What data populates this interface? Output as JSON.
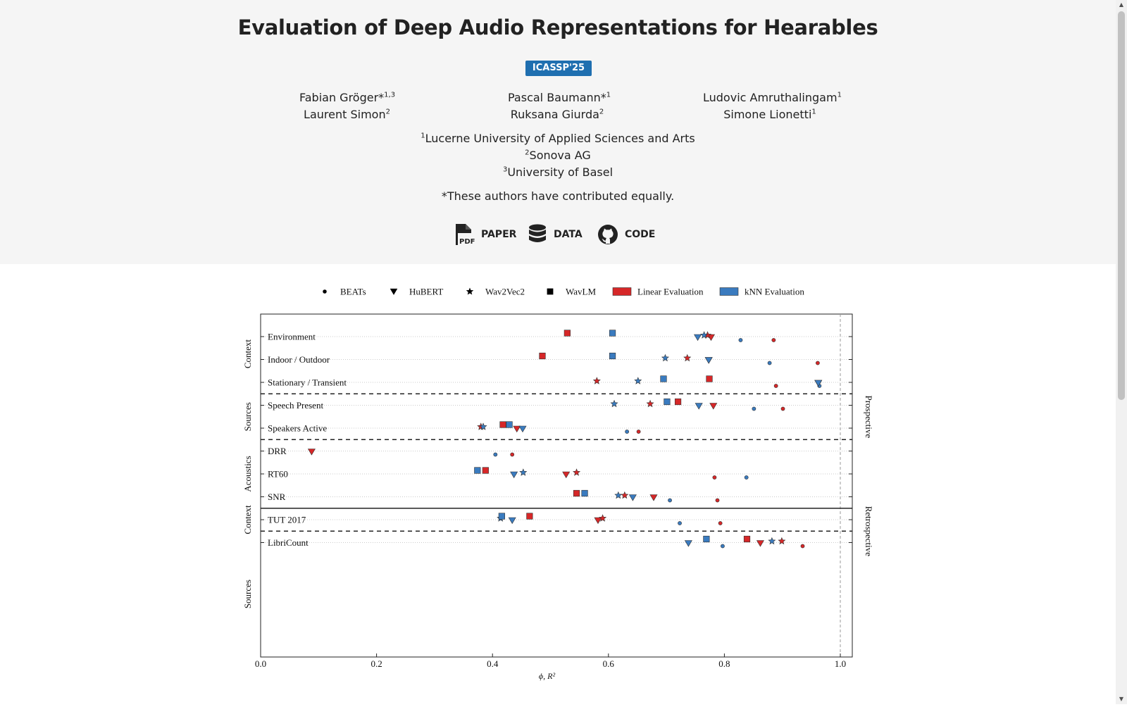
{
  "hero": {
    "title": "Evaluation of Deep Audio Representations for Hearables",
    "venue": "ICASSP'25",
    "authors": [
      {
        "name": "Fabian Gröger*",
        "sup": "1,3"
      },
      {
        "name": "Pascal Baumann*",
        "sup": "1"
      },
      {
        "name": "Ludovic Amruthalingam",
        "sup": "1"
      },
      {
        "name": "Laurent Simon",
        "sup": "2"
      },
      {
        "name": "Ruksana Giurda",
        "sup": "2"
      },
      {
        "name": "Simone Lionetti",
        "sup": "1"
      }
    ],
    "affiliations": [
      {
        "sup": "1",
        "name": "Lucerne University of Applied Sciences and Arts"
      },
      {
        "sup": "2",
        "name": "Sonova AG"
      },
      {
        "sup": "3",
        "name": "University of Basel"
      }
    ],
    "note": "*These authors have contributed equally.",
    "links": [
      {
        "label": "PAPER",
        "icon": "pdf-file-icon"
      },
      {
        "label": "DATA",
        "icon": "database-icon"
      },
      {
        "label": "CODE",
        "icon": "github-icon"
      }
    ]
  },
  "colors": {
    "linear": "#d62728",
    "knn": "#3a7bbf",
    "venue_badge": "#1f6fb0",
    "hero_bg": "#f5f5f5"
  },
  "chart_data": {
    "type": "scatter",
    "xlabel": "ϕ, R²",
    "xlim": [
      0.0,
      1.0
    ],
    "xticks": [
      "0.0",
      "0.2",
      "0.4",
      "0.6",
      "0.8",
      "1.0"
    ],
    "legend": {
      "placement": "top",
      "models": [
        {
          "name": "BEATs",
          "marker": "circle"
        },
        {
          "name": "HuBERT",
          "marker": "triangle-down"
        },
        {
          "name": "Wav2Vec2",
          "marker": "star"
        },
        {
          "name": "WavLM",
          "marker": "square"
        }
      ],
      "evaluations": [
        {
          "name": "Linear Evaluation",
          "key": "linear"
        },
        {
          "name": "kNN Evaluation",
          "key": "knn"
        }
      ]
    },
    "groups": [
      {
        "label": "Context",
        "rows": [
          "Environment",
          "Indoor / Outdoor",
          "Stationary / Transient"
        ]
      },
      {
        "label": "Sources",
        "rows": [
          "Speech Present",
          "Speakers Active"
        ]
      },
      {
        "label": "Acoustics",
        "rows": [
          "DRR",
          "RT60",
          "SNR"
        ]
      },
      {
        "label": "Context",
        "rows": [
          "TUT 2017"
        ]
      },
      {
        "label": "Sources",
        "rows": [
          "LibriCount"
        ]
      }
    ],
    "sections": [
      {
        "label": "Prospective",
        "rows": [
          "Environment",
          "Indoor / Outdoor",
          "Stationary / Transient",
          "Speech Present",
          "Speakers Active",
          "DRR",
          "RT60",
          "SNR"
        ]
      },
      {
        "label": "Retrospective",
        "rows": [
          "TUT 2017",
          "LibriCount"
        ]
      }
    ],
    "points": [
      {
        "row": "Environment",
        "model": "BEATs",
        "eval": "linear",
        "x": 0.885
      },
      {
        "row": "Environment",
        "model": "BEATs",
        "eval": "knn",
        "x": 0.828
      },
      {
        "row": "Environment",
        "model": "HuBERT",
        "eval": "linear",
        "x": 0.777
      },
      {
        "row": "Environment",
        "model": "HuBERT",
        "eval": "knn",
        "x": 0.754
      },
      {
        "row": "Environment",
        "model": "Wav2Vec2",
        "eval": "linear",
        "x": 0.771
      },
      {
        "row": "Environment",
        "model": "Wav2Vec2",
        "eval": "knn",
        "x": 0.765
      },
      {
        "row": "Environment",
        "model": "WavLM",
        "eval": "linear",
        "x": 0.529
      },
      {
        "row": "Environment",
        "model": "WavLM",
        "eval": "knn",
        "x": 0.607
      },
      {
        "row": "Indoor / Outdoor",
        "model": "BEATs",
        "eval": "linear",
        "x": 0.961
      },
      {
        "row": "Indoor / Outdoor",
        "model": "BEATs",
        "eval": "knn",
        "x": 0.878
      },
      {
        "row": "Indoor / Outdoor",
        "model": "HuBERT",
        "eval": "linear",
        "x": 0.773
      },
      {
        "row": "Indoor / Outdoor",
        "model": "HuBERT",
        "eval": "knn",
        "x": 0.773
      },
      {
        "row": "Indoor / Outdoor",
        "model": "Wav2Vec2",
        "eval": "linear",
        "x": 0.736
      },
      {
        "row": "Indoor / Outdoor",
        "model": "Wav2Vec2",
        "eval": "knn",
        "x": 0.698
      },
      {
        "row": "Indoor / Outdoor",
        "model": "WavLM",
        "eval": "linear",
        "x": 0.486
      },
      {
        "row": "Indoor / Outdoor",
        "model": "WavLM",
        "eval": "knn",
        "x": 0.607
      },
      {
        "row": "Stationary / Transient",
        "model": "BEATs",
        "eval": "linear",
        "x": 0.889
      },
      {
        "row": "Stationary / Transient",
        "model": "BEATs",
        "eval": "knn",
        "x": 0.964
      },
      {
        "row": "Stationary / Transient",
        "model": "HuBERT",
        "eval": "linear",
        "x": 0.962
      },
      {
        "row": "Stationary / Transient",
        "model": "HuBERT",
        "eval": "knn",
        "x": 0.962
      },
      {
        "row": "Stationary / Transient",
        "model": "Wav2Vec2",
        "eval": "linear",
        "x": 0.58
      },
      {
        "row": "Stationary / Transient",
        "model": "Wav2Vec2",
        "eval": "knn",
        "x": 0.651
      },
      {
        "row": "Stationary / Transient",
        "model": "WavLM",
        "eval": "linear",
        "x": 0.774
      },
      {
        "row": "Stationary / Transient",
        "model": "WavLM",
        "eval": "knn",
        "x": 0.695
      },
      {
        "row": "Speech Present",
        "model": "BEATs",
        "eval": "linear",
        "x": 0.901
      },
      {
        "row": "Speech Present",
        "model": "BEATs",
        "eval": "knn",
        "x": 0.851
      },
      {
        "row": "Speech Present",
        "model": "HuBERT",
        "eval": "linear",
        "x": 0.781
      },
      {
        "row": "Speech Present",
        "model": "HuBERT",
        "eval": "knn",
        "x": 0.756
      },
      {
        "row": "Speech Present",
        "model": "Wav2Vec2",
        "eval": "linear",
        "x": 0.672
      },
      {
        "row": "Speech Present",
        "model": "Wav2Vec2",
        "eval": "knn",
        "x": 0.61
      },
      {
        "row": "Speech Present",
        "model": "WavLM",
        "eval": "linear",
        "x": 0.72
      },
      {
        "row": "Speech Present",
        "model": "WavLM",
        "eval": "knn",
        "x": 0.701
      },
      {
        "row": "Speakers Active",
        "model": "BEATs",
        "eval": "linear",
        "x": 0.652
      },
      {
        "row": "Speakers Active",
        "model": "BEATs",
        "eval": "knn",
        "x": 0.632
      },
      {
        "row": "Speakers Active",
        "model": "HuBERT",
        "eval": "linear",
        "x": 0.442
      },
      {
        "row": "Speakers Active",
        "model": "HuBERT",
        "eval": "knn",
        "x": 0.452
      },
      {
        "row": "Speakers Active",
        "model": "Wav2Vec2",
        "eval": "linear",
        "x": 0.38
      },
      {
        "row": "Speakers Active",
        "model": "Wav2Vec2",
        "eval": "knn",
        "x": 0.384
      },
      {
        "row": "Speakers Active",
        "model": "WavLM",
        "eval": "linear",
        "x": 0.418
      },
      {
        "row": "Speakers Active",
        "model": "WavLM",
        "eval": "knn",
        "x": 0.429
      },
      {
        "row": "DRR",
        "model": "BEATs",
        "eval": "linear",
        "x": 0.434
      },
      {
        "row": "DRR",
        "model": "BEATs",
        "eval": "knn",
        "x": 0.405
      },
      {
        "row": "DRR",
        "model": "HuBERT",
        "eval": "linear",
        "x": 0.088
      },
      {
        "row": "RT60",
        "model": "BEATs",
        "eval": "linear",
        "x": 0.783
      },
      {
        "row": "RT60",
        "model": "BEATs",
        "eval": "knn",
        "x": 0.838
      },
      {
        "row": "RT60",
        "model": "HuBERT",
        "eval": "linear",
        "x": 0.527
      },
      {
        "row": "RT60",
        "model": "HuBERT",
        "eval": "knn",
        "x": 0.437
      },
      {
        "row": "RT60",
        "model": "Wav2Vec2",
        "eval": "linear",
        "x": 0.545
      },
      {
        "row": "RT60",
        "model": "Wav2Vec2",
        "eval": "knn",
        "x": 0.453
      },
      {
        "row": "RT60",
        "model": "WavLM",
        "eval": "linear",
        "x": 0.388
      },
      {
        "row": "RT60",
        "model": "WavLM",
        "eval": "knn",
        "x": 0.374
      },
      {
        "row": "SNR",
        "model": "BEATs",
        "eval": "linear",
        "x": 0.788
      },
      {
        "row": "SNR",
        "model": "BEATs",
        "eval": "knn",
        "x": 0.706
      },
      {
        "row": "SNR",
        "model": "HuBERT",
        "eval": "linear",
        "x": 0.678
      },
      {
        "row": "SNR",
        "model": "HuBERT",
        "eval": "knn",
        "x": 0.642
      },
      {
        "row": "SNR",
        "model": "Wav2Vec2",
        "eval": "linear",
        "x": 0.628
      },
      {
        "row": "SNR",
        "model": "Wav2Vec2",
        "eval": "knn",
        "x": 0.617
      },
      {
        "row": "SNR",
        "model": "WavLM",
        "eval": "linear",
        "x": 0.545
      },
      {
        "row": "SNR",
        "model": "WavLM",
        "eval": "knn",
        "x": 0.559
      },
      {
        "row": "TUT 2017",
        "model": "BEATs",
        "eval": "linear",
        "x": 0.793
      },
      {
        "row": "TUT 2017",
        "model": "BEATs",
        "eval": "knn",
        "x": 0.723
      },
      {
        "row": "TUT 2017",
        "model": "HuBERT",
        "eval": "linear",
        "x": 0.582
      },
      {
        "row": "TUT 2017",
        "model": "HuBERT",
        "eval": "knn",
        "x": 0.434
      },
      {
        "row": "TUT 2017",
        "model": "Wav2Vec2",
        "eval": "linear",
        "x": 0.59
      },
      {
        "row": "TUT 2017",
        "model": "Wav2Vec2",
        "eval": "knn",
        "x": 0.414
      },
      {
        "row": "TUT 2017",
        "model": "WavLM",
        "eval": "linear",
        "x": 0.464
      },
      {
        "row": "TUT 2017",
        "model": "WavLM",
        "eval": "knn",
        "x": 0.416
      },
      {
        "row": "LibriCount",
        "model": "BEATs",
        "eval": "linear",
        "x": 0.935
      },
      {
        "row": "LibriCount",
        "model": "BEATs",
        "eval": "knn",
        "x": 0.797
      },
      {
        "row": "LibriCount",
        "model": "HuBERT",
        "eval": "linear",
        "x": 0.862
      },
      {
        "row": "LibriCount",
        "model": "HuBERT",
        "eval": "knn",
        "x": 0.738
      },
      {
        "row": "LibriCount",
        "model": "Wav2Vec2",
        "eval": "linear",
        "x": 0.899
      },
      {
        "row": "LibriCount",
        "model": "Wav2Vec2",
        "eval": "knn",
        "x": 0.882
      },
      {
        "row": "LibriCount",
        "model": "WavLM",
        "eval": "linear",
        "x": 0.839
      },
      {
        "row": "LibriCount",
        "model": "WavLM",
        "eval": "knn",
        "x": 0.769
      }
    ]
  }
}
